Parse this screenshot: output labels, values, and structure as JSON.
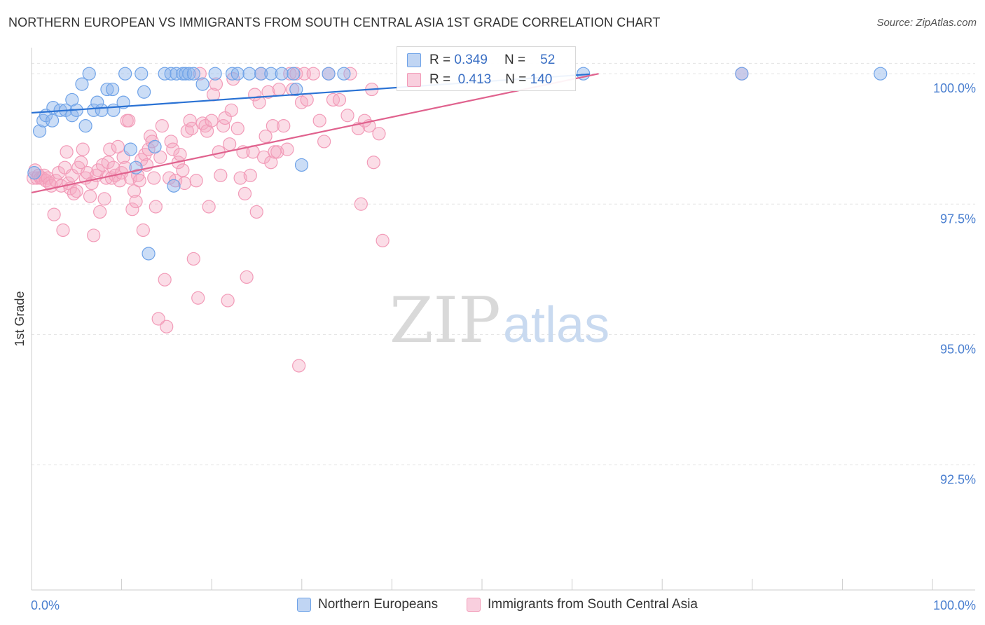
{
  "title": "NORTHERN EUROPEAN VS IMMIGRANTS FROM SOUTH CENTRAL ASIA 1ST GRADE CORRELATION CHART",
  "source": "Source: ZipAtlas.com",
  "watermark": {
    "zip": "ZIP",
    "atlas": "atlas"
  },
  "legend_box": {
    "rows": [
      {
        "r_label": "R =",
        "r_value": "0.349",
        "n_label": "N =",
        "n_value": "52"
      },
      {
        "r_label": "R =",
        "r_value": "0.413",
        "n_label": "N =",
        "n_value": "140"
      }
    ]
  },
  "colors": {
    "blue": "#6fa3e8",
    "blue_fill": "rgba(140,180,235,0.45)",
    "blue_line": "#2a72d4",
    "pink": "#f29bb8",
    "pink_fill": "rgba(245,170,195,0.40)",
    "pink_line": "#e0628e",
    "grid": "#e3e3e3",
    "tick_text": "#4a7fd0"
  },
  "chart_data": {
    "type": "scatter",
    "title": "NORTHERN EUROPEAN VS IMMIGRANTS FROM SOUTH CENTRAL ASIA 1ST GRADE CORRELATION CHART",
    "xlabel": "",
    "ylabel": "1st Grade",
    "xlim": [
      0,
      100
    ],
    "ylim": [
      90.1,
      100.5
    ],
    "x_tick_labels": [
      "0.0%",
      "100.0%"
    ],
    "y_ticks": [
      92.5,
      95.0,
      97.5,
      100.0
    ],
    "y_tick_labels": [
      "92.5%",
      "95.0%",
      "97.5%",
      "100.0%"
    ],
    "legend_position": "bottom",
    "series": [
      {
        "name": "Northern Europeans",
        "color": "blue",
        "R": 0.349,
        "N": 52,
        "trend": {
          "x": [
            0,
            62
          ],
          "y": [
            99.25,
            99.99
          ]
        },
        "points": [
          [
            0.3,
            98.1
          ],
          [
            0.9,
            98.9
          ],
          [
            1.3,
            99.1
          ],
          [
            1.6,
            99.2
          ],
          [
            2.3,
            99.1
          ],
          [
            2.4,
            99.35
          ],
          [
            3.2,
            99.3
          ],
          [
            3.8,
            99.3
          ],
          [
            4.5,
            99.2
          ],
          [
            4.5,
            99.5
          ],
          [
            5.0,
            99.3
          ],
          [
            5.6,
            99.8
          ],
          [
            6.0,
            99.0
          ],
          [
            6.4,
            100.0
          ],
          [
            6.9,
            99.3
          ],
          [
            7.3,
            99.45
          ],
          [
            7.8,
            99.3
          ],
          [
            8.4,
            99.7
          ],
          [
            9.0,
            99.7
          ],
          [
            9.1,
            99.3
          ],
          [
            10.2,
            99.45
          ],
          [
            10.4,
            100.0
          ],
          [
            11.0,
            98.55
          ],
          [
            11.6,
            98.2
          ],
          [
            12.2,
            100.0
          ],
          [
            12.5,
            99.65
          ],
          [
            13.0,
            96.55
          ],
          [
            13.7,
            98.6
          ],
          [
            14.8,
            100.0
          ],
          [
            15.5,
            100.0
          ],
          [
            16.1,
            100.0
          ],
          [
            16.8,
            100.0
          ],
          [
            17.1,
            100.0
          ],
          [
            17.5,
            100.0
          ],
          [
            15.8,
            97.85
          ],
          [
            18.0,
            100.0
          ],
          [
            19.0,
            99.8
          ],
          [
            20.4,
            100.0
          ],
          [
            22.3,
            100.0
          ],
          [
            22.9,
            100.0
          ],
          [
            24.2,
            100.0
          ],
          [
            25.5,
            100.0
          ],
          [
            26.6,
            100.0
          ],
          [
            27.8,
            100.0
          ],
          [
            29.1,
            100.0
          ],
          [
            29.4,
            99.7
          ],
          [
            30.0,
            98.25
          ],
          [
            33.0,
            100.0
          ],
          [
            34.7,
            100.0
          ],
          [
            61.3,
            100.0
          ],
          [
            78.9,
            100.0
          ],
          [
            94.3,
            100.0
          ]
        ]
      },
      {
        "name": "Immigrants from South Central Asia",
        "color": "pink",
        "R": 0.413,
        "N": 140,
        "trend": {
          "x": [
            0,
            63
          ],
          "y": [
            97.72,
            100.0
          ]
        },
        "points": [
          [
            0.2,
            98.0
          ],
          [
            0.4,
            98.15
          ],
          [
            0.6,
            98.0
          ],
          [
            0.8,
            98.05
          ],
          [
            1.0,
            98.0
          ],
          [
            1.2,
            98.0
          ],
          [
            1.4,
            98.05
          ],
          [
            1.6,
            97.95
          ],
          [
            1.8,
            98.0
          ],
          [
            2.0,
            97.9
          ],
          [
            2.2,
            97.85
          ],
          [
            2.5,
            97.3
          ],
          [
            2.7,
            97.95
          ],
          [
            3.0,
            98.1
          ],
          [
            3.3,
            97.85
          ],
          [
            3.5,
            97.0
          ],
          [
            3.7,
            98.2
          ],
          [
            3.9,
            98.5
          ],
          [
            4.1,
            97.9
          ],
          [
            4.3,
            97.8
          ],
          [
            4.5,
            98.05
          ],
          [
            4.7,
            97.7
          ],
          [
            5.0,
            97.75
          ],
          [
            5.2,
            98.2
          ],
          [
            5.5,
            98.3
          ],
          [
            5.7,
            98.55
          ],
          [
            6.0,
            98.0
          ],
          [
            6.2,
            98.1
          ],
          [
            6.5,
            97.65
          ],
          [
            6.7,
            97.9
          ],
          [
            6.9,
            96.9
          ],
          [
            7.2,
            98.05
          ],
          [
            7.4,
            98.15
          ],
          [
            7.6,
            97.35
          ],
          [
            7.9,
            98.25
          ],
          [
            8.1,
            97.6
          ],
          [
            8.3,
            98.0
          ],
          [
            8.5,
            98.3
          ],
          [
            8.7,
            98.55
          ],
          [
            8.9,
            98.0
          ],
          [
            9.1,
            98.2
          ],
          [
            9.3,
            98.05
          ],
          [
            9.6,
            98.6
          ],
          [
            9.8,
            97.95
          ],
          [
            10.0,
            98.1
          ],
          [
            10.2,
            98.4
          ],
          [
            10.4,
            98.2
          ],
          [
            10.6,
            99.1
          ],
          [
            10.8,
            99.1
          ],
          [
            11.0,
            98.0
          ],
          [
            11.2,
            97.4
          ],
          [
            11.4,
            97.75
          ],
          [
            11.6,
            97.55
          ],
          [
            11.8,
            98.05
          ],
          [
            12.0,
            97.95
          ],
          [
            12.2,
            98.35
          ],
          [
            12.4,
            97.0
          ],
          [
            12.6,
            98.45
          ],
          [
            12.8,
            98.25
          ],
          [
            13.0,
            98.55
          ],
          [
            13.2,
            98.8
          ],
          [
            13.4,
            98.7
          ],
          [
            13.6,
            98.0
          ],
          [
            13.8,
            97.45
          ],
          [
            14.1,
            95.3
          ],
          [
            14.3,
            98.4
          ],
          [
            14.5,
            99.0
          ],
          [
            14.8,
            96.05
          ],
          [
            15.0,
            95.15
          ],
          [
            15.3,
            98.0
          ],
          [
            15.5,
            98.7
          ],
          [
            15.7,
            98.55
          ],
          [
            16.0,
            97.95
          ],
          [
            16.3,
            98.3
          ],
          [
            16.5,
            98.45
          ],
          [
            16.8,
            98.15
          ],
          [
            17.0,
            97.9
          ],
          [
            17.3,
            98.9
          ],
          [
            17.6,
            99.1
          ],
          [
            17.8,
            98.95
          ],
          [
            18.0,
            96.45
          ],
          [
            18.3,
            97.95
          ],
          [
            18.5,
            95.7
          ],
          [
            18.7,
            100.0
          ],
          [
            19.0,
            99.05
          ],
          [
            19.3,
            99.0
          ],
          [
            19.5,
            98.9
          ],
          [
            19.7,
            97.45
          ],
          [
            20.0,
            99.1
          ],
          [
            20.2,
            99.6
          ],
          [
            20.5,
            99.8
          ],
          [
            20.8,
            98.5
          ],
          [
            21.0,
            98.05
          ],
          [
            21.3,
            99.0
          ],
          [
            21.5,
            99.15
          ],
          [
            21.8,
            95.65
          ],
          [
            22.0,
            98.65
          ],
          [
            22.2,
            99.3
          ],
          [
            22.4,
            99.9
          ],
          [
            22.9,
            98.95
          ],
          [
            23.2,
            98.0
          ],
          [
            23.5,
            98.5
          ],
          [
            23.7,
            97.7
          ],
          [
            23.9,
            96.1
          ],
          [
            24.3,
            98.05
          ],
          [
            24.6,
            98.5
          ],
          [
            24.8,
            99.6
          ],
          [
            25.0,
            97.35
          ],
          [
            25.3,
            99.45
          ],
          [
            25.5,
            100.0
          ],
          [
            25.8,
            98.4
          ],
          [
            26.0,
            98.8
          ],
          [
            26.3,
            99.65
          ],
          [
            26.6,
            98.3
          ],
          [
            26.8,
            99.0
          ],
          [
            27.0,
            98.5
          ],
          [
            27.3,
            98.5
          ],
          [
            27.5,
            99.7
          ],
          [
            28.0,
            99.0
          ],
          [
            28.4,
            98.55
          ],
          [
            28.7,
            100.0
          ],
          [
            29.0,
            99.7
          ],
          [
            29.4,
            100.0
          ],
          [
            29.7,
            94.4
          ],
          [
            30.0,
            99.45
          ],
          [
            30.3,
            100.0
          ],
          [
            30.6,
            99.5
          ],
          [
            31.3,
            100.0
          ],
          [
            32.0,
            99.1
          ],
          [
            32.5,
            98.7
          ],
          [
            33.0,
            100.0
          ],
          [
            33.5,
            99.5
          ],
          [
            34.2,
            99.5
          ],
          [
            35.1,
            99.2
          ],
          [
            35.4,
            100.0
          ],
          [
            36.3,
            98.95
          ],
          [
            36.6,
            97.5
          ],
          [
            37.0,
            99.1
          ],
          [
            37.5,
            99.0
          ],
          [
            37.8,
            99.7
          ],
          [
            38.0,
            98.3
          ],
          [
            38.6,
            98.85
          ],
          [
            39.0,
            96.8
          ],
          [
            78.9,
            100.0
          ]
        ]
      }
    ]
  },
  "bottom_legend": [
    {
      "label": "Northern Europeans",
      "color": "blue"
    },
    {
      "label": "Immigrants from South Central Asia",
      "color": "pink"
    }
  ]
}
